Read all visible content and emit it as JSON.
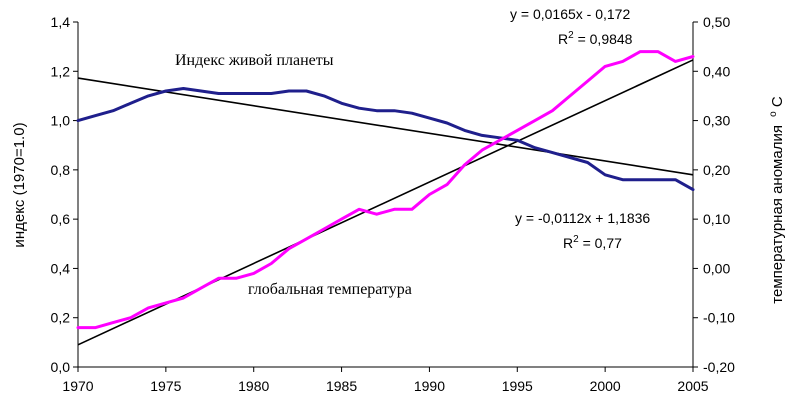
{
  "chart_data": {
    "type": "line",
    "title": "",
    "xlabel": "",
    "ylabel": "индекс (1970=1.0)",
    "y2label": "температурная аномалия °С",
    "y2label_main": "температурная аномалия",
    "y2label_unit": "С",
    "y2label_degree": "o",
    "xlim": [
      1970,
      2005
    ],
    "ylim": [
      0,
      1.4
    ],
    "y2lim": [
      -0.2,
      0.5
    ],
    "x_ticks": [
      "1970",
      "1975",
      "1980",
      "1985",
      "1990",
      "1995",
      "2000",
      "2005"
    ],
    "y_ticks": [
      "0,0",
      "0,2",
      "0,4",
      "0,6",
      "0,8",
      "1,0",
      "1,2",
      "1,4"
    ],
    "y2_ticks": [
      "-0,20",
      "-0,10",
      "0,00",
      "0,10",
      "0,20",
      "0,30",
      "0,40",
      "0,50"
    ],
    "grid": false,
    "legend": "none",
    "series": [
      {
        "name": "Индекс живой планеты",
        "axis": "left",
        "color": "#1f1f8c",
        "x": [
          1970,
          1971,
          1972,
          1973,
          1974,
          1975,
          1976,
          1977,
          1978,
          1979,
          1980,
          1981,
          1982,
          1983,
          1984,
          1985,
          1986,
          1987,
          1988,
          1989,
          1990,
          1991,
          1992,
          1993,
          1994,
          1995,
          1996,
          1997,
          1998,
          1999,
          2000,
          2001,
          2002,
          2003,
          2004,
          2005
        ],
        "values": [
          1.0,
          1.02,
          1.04,
          1.07,
          1.1,
          1.12,
          1.13,
          1.12,
          1.11,
          1.11,
          1.11,
          1.11,
          1.12,
          1.12,
          1.1,
          1.07,
          1.05,
          1.04,
          1.04,
          1.03,
          1.01,
          0.99,
          0.96,
          0.94,
          0.93,
          0.92,
          0.89,
          0.87,
          0.85,
          0.83,
          0.78,
          0.76,
          0.76,
          0.76,
          0.76,
          0.72
        ]
      },
      {
        "name": "глобальная температура",
        "axis": "right",
        "color": "#ff00ff",
        "x": [
          1970,
          1971,
          1972,
          1973,
          1974,
          1975,
          1976,
          1977,
          1978,
          1979,
          1980,
          1981,
          1982,
          1983,
          1984,
          1985,
          1986,
          1987,
          1988,
          1989,
          1990,
          1991,
          1992,
          1993,
          1994,
          1995,
          1996,
          1997,
          1998,
          1999,
          2000,
          2001,
          2002,
          2003,
          2004,
          2005
        ],
        "values": [
          -0.12,
          -0.12,
          -0.11,
          -0.1,
          -0.08,
          -0.07,
          -0.06,
          -0.04,
          -0.02,
          -0.02,
          -0.01,
          0.01,
          0.04,
          0.06,
          0.08,
          0.1,
          0.12,
          0.11,
          0.12,
          0.12,
          0.15,
          0.17,
          0.21,
          0.24,
          0.26,
          0.28,
          0.3,
          0.32,
          0.35,
          0.38,
          0.41,
          0.42,
          0.44,
          0.44,
          0.42,
          0.43
        ]
      }
    ],
    "trendlines": [
      {
        "axis": "right",
        "color": "#000000",
        "equation": "y = 0,0165x - 0,172",
        "r2_prefix": "R",
        "r2_exp": "2",
        "r2_value": " = 0,9848",
        "x_range": [
          1970,
          2005
        ],
        "values": [
          -0.155,
          0.423
        ]
      },
      {
        "axis": "left",
        "color": "#000000",
        "equation": "y = -0,0112x + 1,1836",
        "r2_prefix": "R",
        "r2_exp": "2",
        "r2_value": " = 0,77",
        "x_range": [
          1970,
          2005
        ],
        "values": [
          1.1724,
          0.78
        ]
      }
    ],
    "annotations": {
      "lpi_label": "Индекс живой планеты",
      "temp_label": "глобальная температура"
    }
  }
}
